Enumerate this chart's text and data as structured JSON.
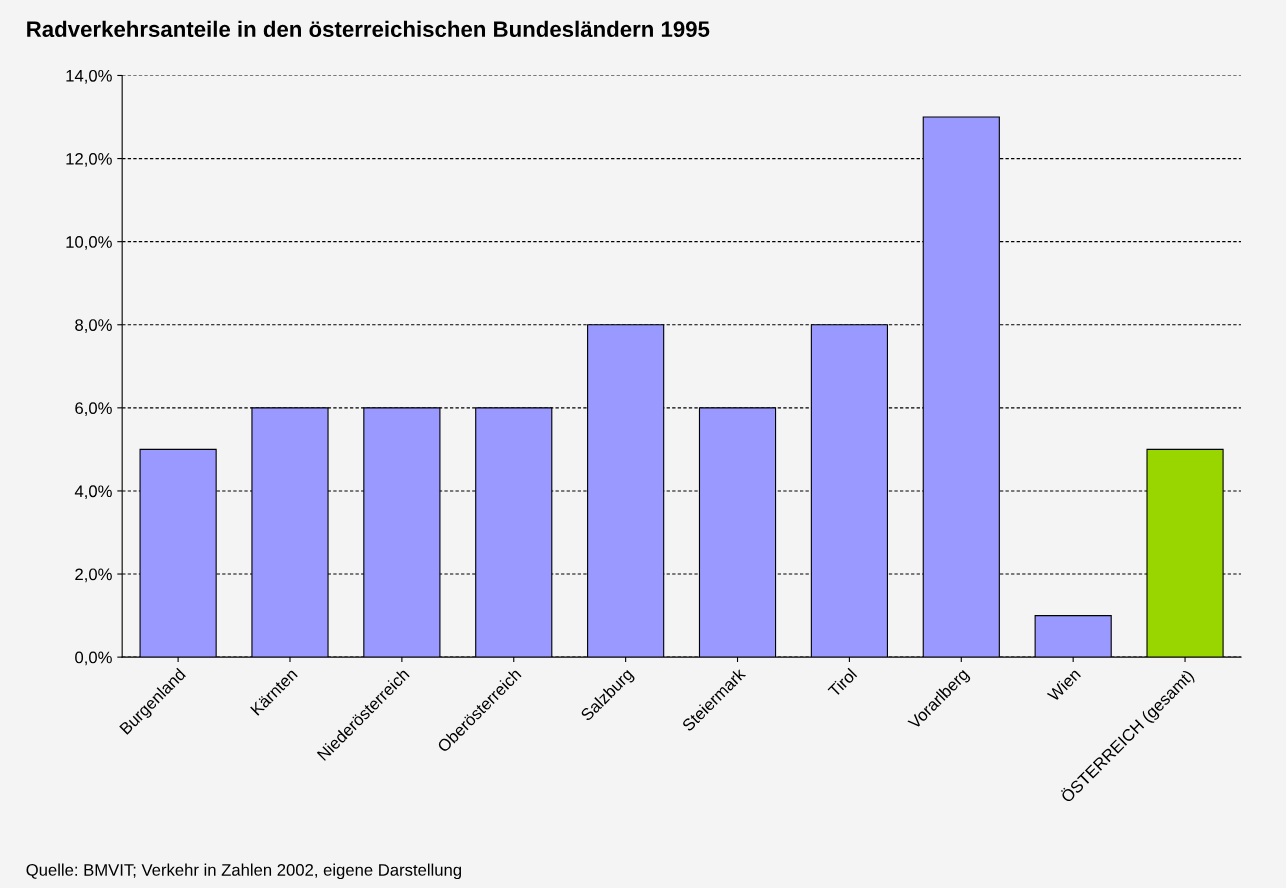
{
  "chart_data": {
    "type": "bar",
    "title": "Radverkehrsanteile in den österreichischen Bundesländern 1995",
    "categories": [
      "Burgenland",
      "Kärnten",
      "Niederösterreich",
      "Oberösterreich",
      "Salzburg",
      "Steiermark",
      "Tirol",
      "Vorarlberg",
      "Wien",
      "ÖSTERREICH (gesamt)"
    ],
    "values": [
      5,
      6,
      6,
      6,
      8,
      6,
      8,
      13,
      1,
      5
    ],
    "colors": [
      "#9999ff",
      "#9999ff",
      "#9999ff",
      "#9999ff",
      "#9999ff",
      "#9999ff",
      "#9999ff",
      "#9999ff",
      "#9999ff",
      "#99d600"
    ],
    "ylim": [
      0,
      14
    ],
    "yticks": [
      {
        "value": 0,
        "label": "0,0%"
      },
      {
        "value": 2,
        "label": "2,0%"
      },
      {
        "value": 4,
        "label": "4,0%"
      },
      {
        "value": 6,
        "label": "6,0%"
      },
      {
        "value": 8,
        "label": "8,0%"
      },
      {
        "value": 10,
        "label": "10,0%"
      },
      {
        "value": 12,
        "label": "12,0%"
      },
      {
        "value": 14,
        "label": "14,0%"
      }
    ],
    "grid": "y",
    "legend": false,
    "annotations": [
      "Quelle: BMVIT; Verkehr in Zahlen 2002, eigene Darstellung"
    ]
  }
}
